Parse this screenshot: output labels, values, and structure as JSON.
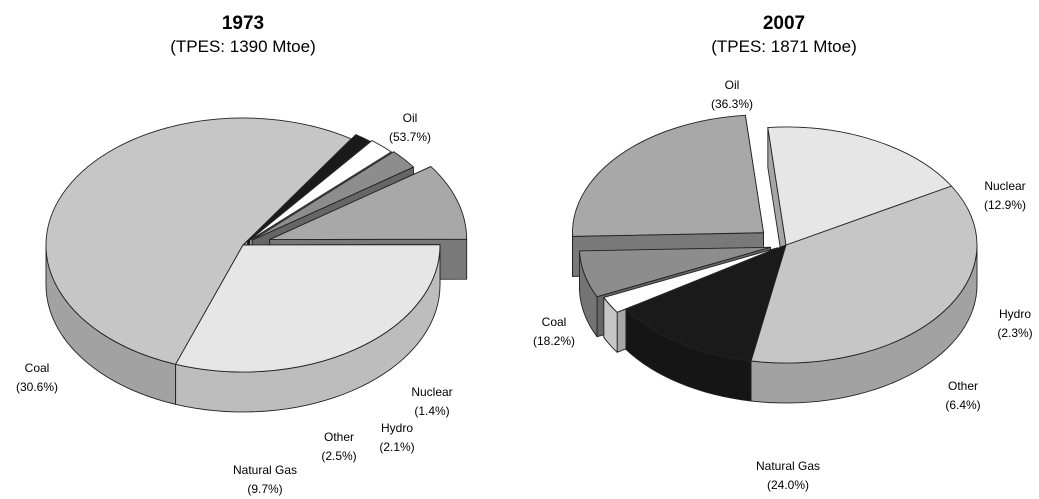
{
  "chart_data": [
    {
      "type": "pie",
      "title": "1973",
      "subtitle": "(TPES: 1390 Mtoe)",
      "slices": [
        {
          "label": "Oil",
          "value": 53.7,
          "value_label": "(53.7%)",
          "color": "#c6c6c6"
        },
        {
          "label": "Nuclear",
          "value": 1.4,
          "value_label": "(1.4%)",
          "color": "#1a1a1a"
        },
        {
          "label": "Hydro",
          "value": 2.1,
          "value_label": "(2.1%)",
          "color": "#ffffff"
        },
        {
          "label": "Other",
          "value": 2.5,
          "value_label": "(2.5%)",
          "color": "#8d8d8d"
        },
        {
          "label": "Natural Gas",
          "value": 9.7,
          "value_label": "(9.7%)",
          "color": "#a8a8a8"
        },
        {
          "label": "Coal",
          "value": 30.6,
          "value_label": "(30.6%)",
          "color": "#e6e6e6"
        }
      ]
    },
    {
      "type": "pie",
      "title": "2007",
      "subtitle": "(TPES: 1871 Mtoe)",
      "slices": [
        {
          "label": "Oil",
          "value": 36.3,
          "value_label": "(36.3%)",
          "color": "#c6c6c6"
        },
        {
          "label": "Nuclear",
          "value": 12.9,
          "value_label": "(12.9%)",
          "color": "#1a1a1a"
        },
        {
          "label": "Hydro",
          "value": 2.3,
          "value_label": "(2.3%)",
          "color": "#ffffff"
        },
        {
          "label": "Other",
          "value": 6.4,
          "value_label": "(6.4%)",
          "color": "#8d8d8d"
        },
        {
          "label": "Natural Gas",
          "value": 24.0,
          "value_label": "(24.0%)",
          "color": "#a8a8a8"
        },
        {
          "label": "Coal",
          "value": 18.2,
          "value_label": "(18.2%)",
          "color": "#e6e6e6"
        }
      ]
    }
  ]
}
